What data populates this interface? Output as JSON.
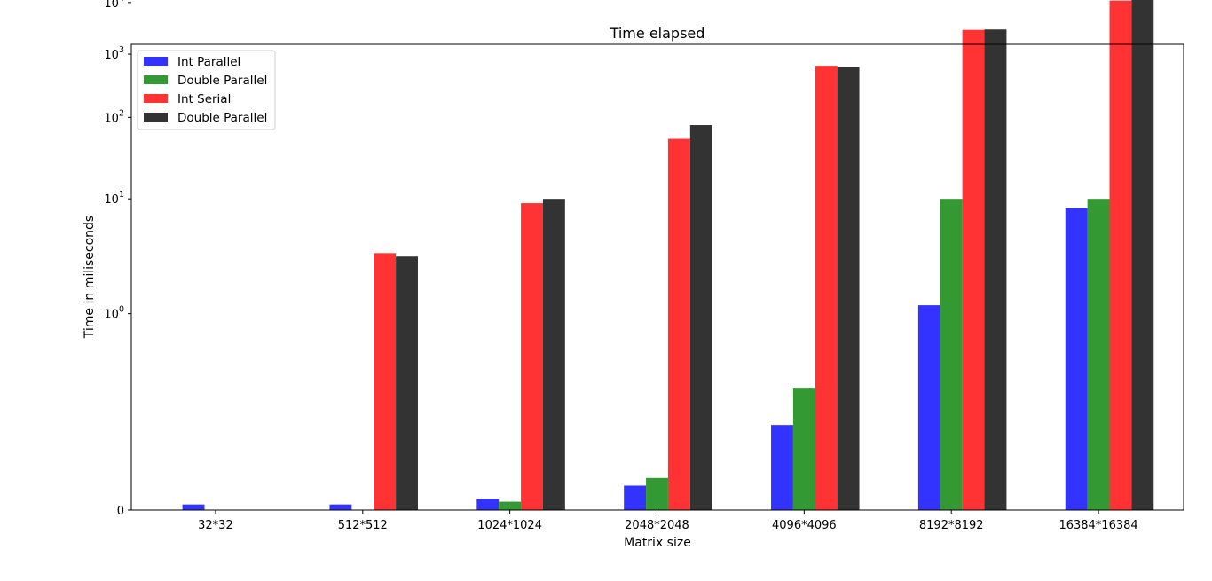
{
  "chart_data": {
    "type": "bar",
    "title": "Time elapsed",
    "xlabel": "Matrix size",
    "ylabel": "Time in miliseconds",
    "y_scale": "symlog",
    "grid": false,
    "legend_position": "top-left",
    "categories": [
      "32*32",
      "512*512",
      "1024*1024",
      "2048*2048",
      "4096*4096",
      "8192*8192",
      "16384*16384"
    ],
    "y_ticks": [
      {
        "base": "0",
        "exp": ""
      },
      {
        "base": "10",
        "exp": "0"
      },
      {
        "base": "10",
        "exp": "1"
      },
      {
        "base": "10",
        "exp": "2"
      },
      {
        "base": "10",
        "exp": "3"
      },
      {
        "base": "10",
        "exp": "4"
      }
    ],
    "series": [
      {
        "name": "Int Parallel",
        "color": "#3333ff",
        "values": [
          0.02,
          0.02,
          0.04,
          0.09,
          0.35,
          1.15,
          8
        ]
      },
      {
        "name": "Double Parallel",
        "color": "#339933",
        "values": [
          0.0,
          0.0,
          0.03,
          0.12,
          0.54,
          10,
          10
        ]
      },
      {
        "name": "Int Serial",
        "color": "#ff3333",
        "values": [
          0.0,
          3.0,
          9,
          51,
          630,
          2800,
          11000
        ]
      },
      {
        "name": "Double Parallel",
        "color": "#333333",
        "values": [
          0.0,
          2.8,
          10,
          78,
          600,
          2850,
          12000
        ]
      }
    ]
  }
}
